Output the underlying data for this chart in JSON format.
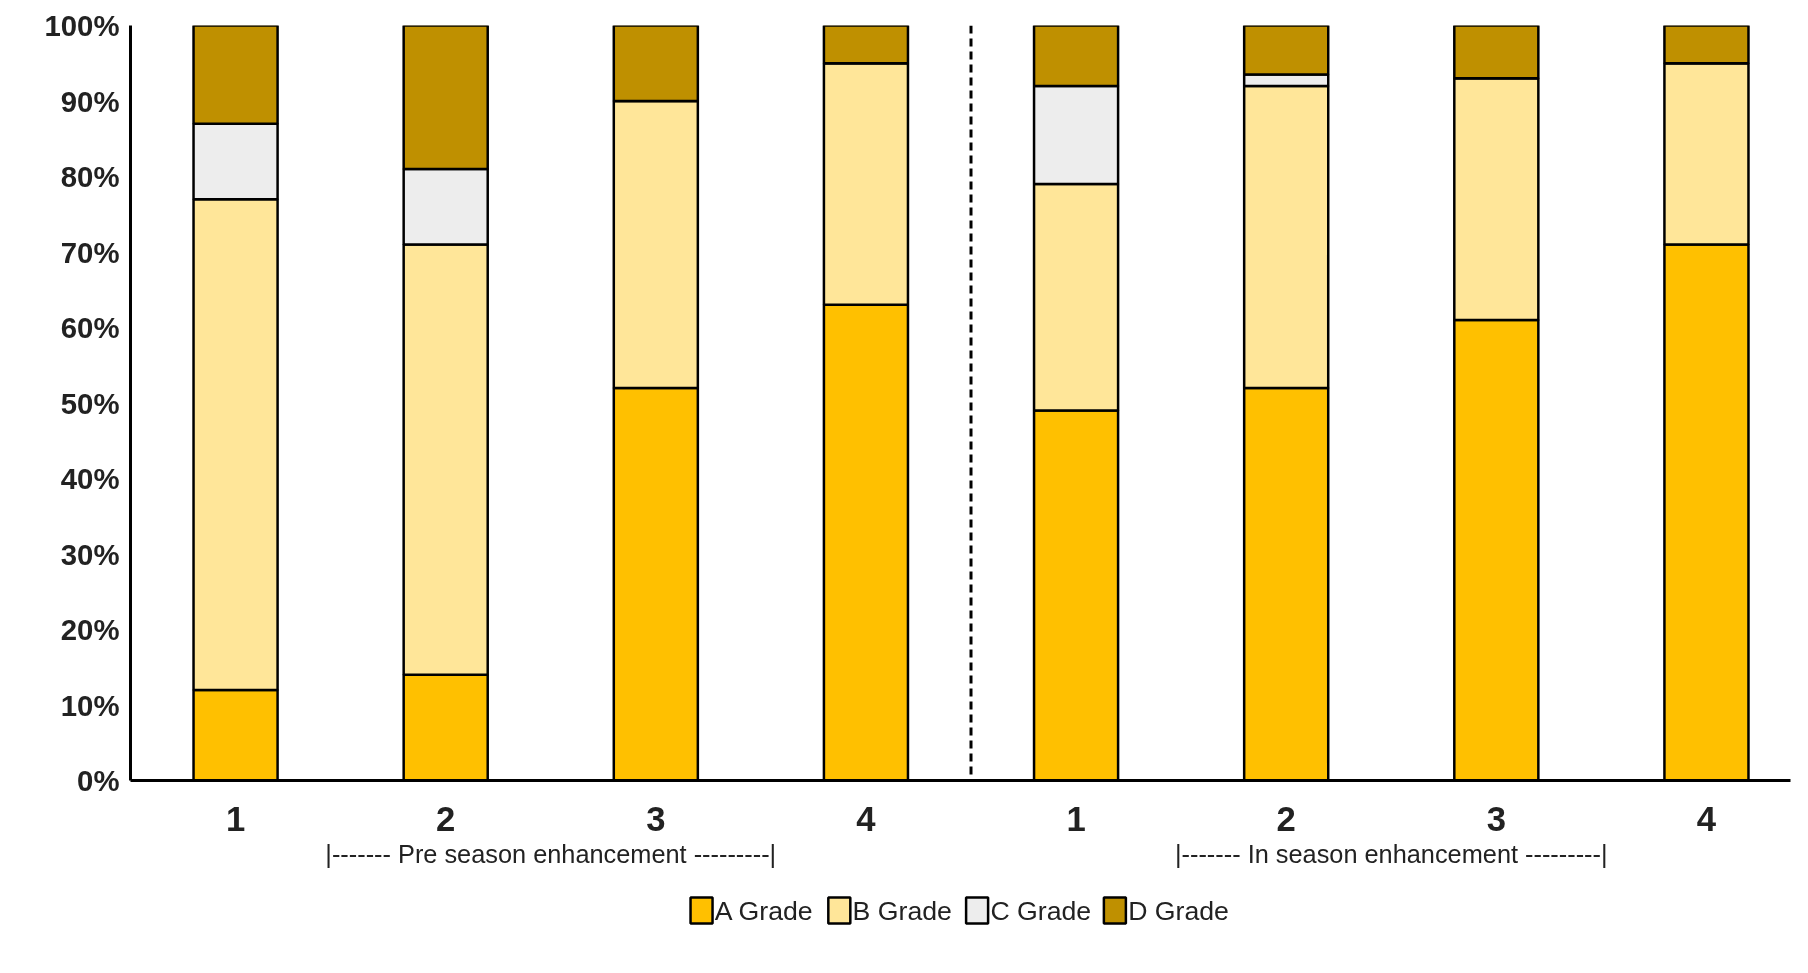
{
  "chart_data": {
    "type": "bar",
    "stacked": true,
    "categories": [
      "1",
      "2",
      "3",
      "4",
      "1",
      "2",
      "3",
      "4"
    ],
    "ylim": [
      0,
      100
    ],
    "yticks": [
      {
        "value": 0,
        "label": "0%"
      },
      {
        "value": 10,
        "label": "10%"
      },
      {
        "value": 20,
        "label": "20%"
      },
      {
        "value": 30,
        "label": "30%"
      },
      {
        "value": 40,
        "label": "40%"
      },
      {
        "value": 50,
        "label": "50%"
      },
      {
        "value": 60,
        "label": "60%"
      },
      {
        "value": 70,
        "label": "70%"
      },
      {
        "value": 80,
        "label": "80%"
      },
      {
        "value": 90,
        "label": "90%"
      },
      {
        "value": 100,
        "label": "100%"
      }
    ],
    "series": [
      {
        "name": "A Grade",
        "color": "#ffc000",
        "values": [
          12,
          14,
          52,
          63,
          49,
          52,
          61,
          71
        ]
      },
      {
        "name": "B Grade",
        "color": "#ffe699",
        "values": [
          65,
          57,
          38,
          32,
          30,
          40,
          32,
          24
        ]
      },
      {
        "name": "C Grade",
        "color": "#ededed",
        "values": [
          10,
          10,
          0,
          0,
          13,
          1.5,
          0,
          0
        ]
      },
      {
        "name": "D Grade",
        "color": "#bf9000",
        "values": [
          13,
          19,
          10,
          5,
          8,
          6.5,
          7,
          5
        ]
      }
    ],
    "annotations": [
      "|------- Pre season enhancement ---------|",
      "|------- In season enhancement ---------|"
    ],
    "legend": "bottom",
    "grid": false
  }
}
